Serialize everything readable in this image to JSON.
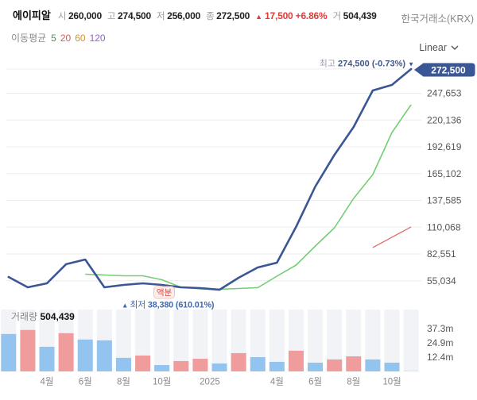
{
  "header": {
    "title": "에이피알",
    "open_label": "시",
    "open": "260,000",
    "high_label": "고",
    "high": "274,500",
    "low_label": "저",
    "low": "256,000",
    "close_label": "종",
    "close": "272,500",
    "change_arrow": "▲",
    "change": "17,500 +6.86%",
    "volume_label": "거",
    "volume": "504,439",
    "exchange": "한국거래소(KRX)"
  },
  "legend": {
    "label": "이동평균",
    "items": [
      {
        "label": "5",
        "color": "#3aa33a"
      },
      {
        "label": "20",
        "color": "#e0574f"
      },
      {
        "label": "60",
        "color": "#dd8f2d"
      },
      {
        "label": "120",
        "color": "#8f62c9"
      }
    ]
  },
  "scale_selector": {
    "label": "Linear",
    "icon": "chevron-down"
  },
  "chart_data": {
    "type": "line+bar",
    "title": "에이피알 monthly price & volume",
    "price": {
      "close": [
        58900,
        48300,
        52400,
        72000,
        76800,
        48300,
        50700,
        52400,
        50700,
        48300,
        47500,
        45800,
        58100,
        68700,
        73600,
        110300,
        151800,
        184400,
        213000,
        250500,
        256200,
        272500
      ],
      "ma5_start_index": 4,
      "ma5": [
        61700,
        60900,
        60100,
        60100,
        56000,
        48300,
        46700,
        46300,
        47100,
        47900,
        59700,
        71100,
        90700,
        109400,
        139600,
        164100,
        207300,
        235800
      ],
      "ma20_start_index": 19,
      "ma20": [
        89100,
        99700,
        110300
      ],
      "line_color": "#3a5694",
      "ma5_color": "#74ce74",
      "ma20_color": "#e06c6c",
      "axis_ticks": [
        {
          "value": 272500,
          "label": "272,500"
        },
        {
          "value": 247653,
          "label": "247,653"
        },
        {
          "value": 220136,
          "label": "220,136"
        },
        {
          "value": 192619,
          "label": "192,619"
        },
        {
          "value": 165102,
          "label": "165,102"
        },
        {
          "value": 137585,
          "label": "137,585"
        },
        {
          "value": 110068,
          "label": "110,068"
        },
        {
          "value": 82551,
          "label": "82,551"
        },
        {
          "value": 55034,
          "label": "55,034"
        }
      ],
      "current_price_tag": "272,500",
      "high_annotation": {
        "label": "최고",
        "value": "274,500 (-0.73%)",
        "arrow": "▼"
      },
      "split_badge": "액분"
    },
    "volume": {
      "label": "거래량",
      "current": "504,439",
      "values_millions": [
        32.5,
        36.0,
        21.4,
        33.2,
        27.7,
        27.0,
        11.8,
        13.8,
        5.5,
        9.0,
        11.0,
        6.9,
        15.9,
        12.4,
        8.3,
        18.0,
        7.6,
        10.4,
        13.1,
        10.4,
        7.6,
        0.8
      ],
      "directions": [
        "down",
        "up",
        "down",
        "up",
        "down",
        "down",
        "down",
        "up",
        "down",
        "up",
        "up",
        "down",
        "up",
        "down",
        "down",
        "up",
        "down",
        "up",
        "up",
        "down",
        "down",
        "partial"
      ],
      "up_color": "#f19c9c",
      "down_color": "#93c3ef",
      "partial_color": "#d7e6f5",
      "axis_ticks": [
        {
          "value": 37.3,
          "label": "37.3m"
        },
        {
          "value": 24.9,
          "label": "24.9m"
        },
        {
          "value": 12.4,
          "label": "12.4m"
        }
      ],
      "low_annotation": {
        "arrow": "▲",
        "label": "최저",
        "value": "38,380 (610.01%)"
      }
    },
    "x_axis": {
      "labels": [
        {
          "text": "4월",
          "pos": 2
        },
        {
          "text": "6월",
          "pos": 4
        },
        {
          "text": "8월",
          "pos": 6
        },
        {
          "text": "10월",
          "pos": 8
        },
        {
          "text": "2025",
          "pos": 10.5
        },
        {
          "text": "4월",
          "pos": 14
        },
        {
          "text": "6월",
          "pos": 16
        },
        {
          "text": "8월",
          "pos": 18
        },
        {
          "text": "10월",
          "pos": 20
        }
      ]
    },
    "layout_hints": {
      "grid": "horizontal",
      "y_axis_position": "right",
      "ylim_price": [
        45800,
        272500
      ],
      "ylim_volume": [
        0,
        40
      ]
    }
  }
}
